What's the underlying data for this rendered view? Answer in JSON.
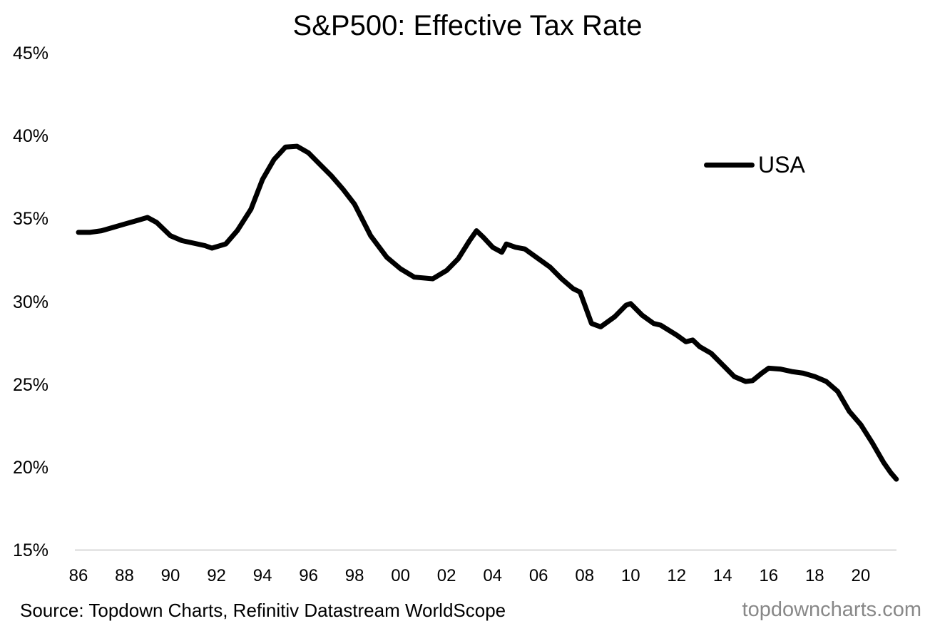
{
  "title": "S&P500: Effective Tax Rate",
  "legend": {
    "label": "USA",
    "color": "#000000"
  },
  "footer": {
    "source": "Source: Topdown Charts, Refinitiv Datastream WorldScope",
    "watermark": "topdowncharts.com"
  },
  "colors": {
    "line": "#000000",
    "axis_line": "#d9d9d9",
    "watermark": "#888888",
    "background": "#ffffff"
  },
  "chart_data": {
    "type": "line",
    "title": "S&P500: Effective Tax Rate",
    "xlabel": "",
    "ylabel": "",
    "grid": false,
    "legend_position": "right",
    "ylim": [
      15,
      45
    ],
    "xlim": [
      1986,
      2021.6
    ],
    "y_tick_values": [
      45,
      40,
      35,
      30,
      25,
      20,
      15
    ],
    "y_tick_labels": [
      "45%",
      "40%",
      "35%",
      "30%",
      "25%",
      "20%",
      "15%"
    ],
    "x_tick_values": [
      1986,
      1988,
      1990,
      1992,
      1994,
      1996,
      1998,
      2000,
      2002,
      2004,
      2006,
      2008,
      2010,
      2012,
      2014,
      2016,
      2018,
      2020
    ],
    "x_tick_labels": [
      "86",
      "88",
      "90",
      "92",
      "94",
      "96",
      "98",
      "00",
      "02",
      "04",
      "06",
      "08",
      "10",
      "12",
      "14",
      "16",
      "18",
      "20"
    ],
    "series": [
      {
        "name": "USA",
        "color": "#000000",
        "x": [
          1986,
          1986.5,
          1987,
          1987.5,
          1988,
          1988.5,
          1989,
          1989.4,
          1990,
          1990.5,
          1991,
          1991.5,
          1991.8,
          1992.4,
          1992.9,
          1993.5,
          1994,
          1994.5,
          1995,
          1995.5,
          1996,
          1996.5,
          1997,
          1997.5,
          1998,
          1998.7,
          1999.4,
          2000,
          2000.6,
          2001.4,
          2002,
          2002.5,
          2003,
          2003.3,
          2003.6,
          2004,
          2004.4,
          2004.6,
          2005,
          2005.4,
          2006,
          2006.5,
          2007,
          2007.5,
          2007.8,
          2008.3,
          2008.7,
          2009,
          2009.3,
          2009.8,
          2010,
          2010.5,
          2011,
          2011.3,
          2012,
          2012.4,
          2012.7,
          2013,
          2013.5,
          2014,
          2014.5,
          2015,
          2015.3,
          2015.7,
          2016,
          2016.5,
          2017,
          2017.5,
          2018,
          2018.5,
          2019,
          2019.5,
          2020,
          2020.5,
          2021,
          2021.3,
          2021.55
        ],
        "values": [
          34.2,
          34.2,
          34.3,
          34.5,
          34.7,
          34.9,
          35.1,
          34.8,
          34.0,
          33.7,
          33.55,
          33.4,
          33.25,
          33.5,
          34.3,
          35.6,
          37.4,
          38.6,
          39.35,
          39.4,
          39.0,
          38.3,
          37.6,
          36.8,
          35.9,
          34.0,
          32.7,
          32.0,
          31.5,
          31.4,
          31.9,
          32.6,
          33.7,
          34.3,
          33.9,
          33.3,
          33.0,
          33.5,
          33.3,
          33.2,
          32.6,
          32.1,
          31.4,
          30.8,
          30.6,
          28.7,
          28.5,
          28.8,
          29.1,
          29.8,
          29.9,
          29.2,
          28.7,
          28.6,
          28.0,
          27.6,
          27.7,
          27.3,
          26.9,
          26.2,
          25.5,
          25.2,
          25.25,
          25.7,
          26.0,
          25.95,
          25.8,
          25.7,
          25.5,
          25.2,
          24.6,
          23.4,
          22.6,
          21.5,
          20.3,
          19.7,
          19.3
        ]
      }
    ]
  }
}
